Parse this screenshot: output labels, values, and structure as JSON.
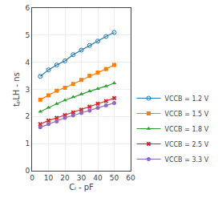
{
  "chart_data": {
    "type": "line",
    "xlabel": "Cₗ - pF",
    "ylabel": "tₚLH - ns",
    "xlim": [
      0,
      60
    ],
    "ylim": [
      0,
      6
    ],
    "xticks": [
      0,
      10,
      20,
      30,
      40,
      50,
      60
    ],
    "yticks": [
      0,
      1,
      2,
      3,
      4,
      5,
      6
    ],
    "grid": true,
    "legend": "lower right",
    "x": [
      5,
      10,
      15,
      20,
      25,
      30,
      35,
      40,
      45,
      50
    ],
    "series": [
      {
        "name": "VCCB = 1.2 V",
        "marker": "circle-open",
        "values": [
          3.48,
          3.72,
          3.9,
          4.05,
          4.28,
          4.45,
          4.62,
          4.78,
          4.95,
          5.1
        ]
      },
      {
        "name": "VCCB = 1.5 V",
        "marker": "square",
        "values": [
          2.62,
          2.78,
          2.95,
          3.06,
          3.2,
          3.35,
          3.5,
          3.62,
          3.75,
          3.9
        ]
      },
      {
        "name": "VCCB = 1.8 V",
        "marker": "triangle-up",
        "values": [
          2.18,
          2.33,
          2.47,
          2.6,
          2.72,
          2.82,
          2.93,
          3.02,
          3.12,
          3.23
        ]
      },
      {
        "name": "VCCB = 2.5 V",
        "marker": "x",
        "values": [
          1.72,
          1.85,
          1.95,
          2.05,
          2.15,
          2.25,
          2.36,
          2.47,
          2.57,
          2.68
        ]
      },
      {
        "name": "VCCB = 3.3 V",
        "marker": "circle",
        "values": [
          1.6,
          1.72,
          1.82,
          1.95,
          2.04,
          2.13,
          2.22,
          2.32,
          2.41,
          2.5
        ]
      }
    ]
  }
}
